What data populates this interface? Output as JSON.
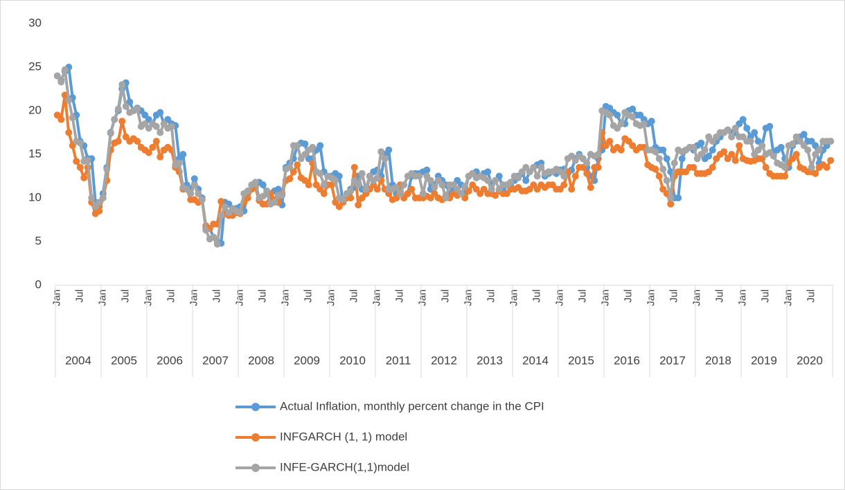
{
  "chart_data": {
    "type": "line",
    "categories": [
      "Jan",
      null,
      null,
      null,
      null,
      null,
      "Jul",
      null,
      null,
      null,
      null,
      null,
      "Jan",
      null,
      null,
      null,
      null,
      null,
      "Jul",
      null,
      null,
      null,
      null,
      null,
      "Jan",
      null,
      null,
      null,
      null,
      null,
      "Jul",
      null,
      null,
      null,
      null,
      null,
      "Jan",
      null,
      null,
      null,
      null,
      null,
      "Jul",
      null,
      null,
      null,
      null,
      null,
      "Jan",
      null,
      null,
      null,
      null,
      null,
      "Jul",
      null,
      null,
      null,
      null,
      null,
      "Jan",
      null,
      null,
      null,
      null,
      null,
      "Jul",
      null,
      null,
      null,
      null,
      null,
      "Jan",
      null,
      null,
      null,
      null,
      null,
      "Jul",
      null,
      null,
      null,
      null,
      null,
      "Jan",
      null,
      null,
      null,
      null,
      null,
      "Jul",
      null,
      null,
      null,
      null,
      null,
      "Jan",
      null,
      null,
      null,
      null,
      null,
      "Jul",
      null,
      null,
      null,
      null,
      null,
      "Jan",
      null,
      null,
      null,
      null,
      null,
      "Jul",
      null,
      null,
      null,
      null,
      null,
      "Jan",
      null,
      null,
      null,
      null,
      null,
      "Jul",
      null,
      null,
      null,
      null,
      null,
      "Jan",
      null,
      null,
      null,
      null,
      null,
      "Jul",
      null,
      null,
      null,
      null,
      null,
      "Jan",
      null,
      null,
      null,
      null,
      null,
      "Jul",
      null,
      null,
      null,
      null,
      null,
      "Jan",
      null,
      null,
      null,
      null,
      null,
      "Jul",
      null,
      null,
      null,
      null,
      null,
      "Jan",
      null,
      null,
      null,
      null,
      null,
      "Jul",
      null,
      null,
      null,
      null,
      null,
      "Jan",
      null,
      null,
      null,
      null,
      null,
      "Jul",
      null,
      null,
      null,
      null,
      null,
      "Jan",
      null,
      null,
      null,
      null,
      null,
      "Jul",
      null,
      null,
      null,
      null,
      null
    ],
    "years": [
      "2004",
      "2005",
      "2006",
      "2007",
      "2008",
      "2009",
      "2010",
      "2011",
      "2012",
      "2013",
      "2014",
      "2015",
      "2016",
      "2017",
      "2018",
      "2019",
      "2020"
    ],
    "ylim": [
      0,
      30
    ],
    "yticks": [
      0,
      5,
      10,
      15,
      20,
      25,
      30
    ],
    "grid": false,
    "series": [
      {
        "name": "Actual Inflation, monthly percent change in the CPI",
        "color": "#5b9bd5",
        "values": [
          24,
          23.5,
          24.5,
          25,
          21.5,
          19.5,
          16.5,
          16,
          14.5,
          14.5,
          9.5,
          9,
          10.5,
          13.5,
          17.5,
          19,
          20,
          22.5,
          23.2,
          21,
          20,
          20.3,
          20,
          19.5,
          19,
          18.5,
          19.5,
          19.8,
          18.5,
          19,
          18.5,
          18.3,
          14.5,
          15,
          11.5,
          11,
          12.2,
          11,
          10,
          6.5,
          6.5,
          5.5,
          5,
          4.8,
          9.5,
          9.3,
          8.5,
          8.8,
          9,
          8.5,
          10.5,
          11,
          11.5,
          11.8,
          11.5,
          10.5,
          10,
          10.8,
          11,
          9.2,
          13.5,
          14,
          14.5,
          16,
          16.3,
          16.2,
          14.5,
          14.5,
          15.5,
          16,
          13,
          12.5,
          12.5,
          12.8,
          12.5,
          9.5,
          10,
          11,
          11.2,
          12.5,
          11,
          10.5,
          12.5,
          13,
          13.2,
          12.5,
          15,
          15.5,
          11.5,
          10.5,
          10.8,
          10,
          10.5,
          12.5,
          12.8,
          12.8,
          13,
          13.2,
          11,
          11.5,
          12.5,
          12,
          11.5,
          10.5,
          11,
          12,
          11.5,
          10.8,
          12.5,
          12.8,
          13,
          12.5,
          12.8,
          13,
          11.5,
          12,
          12.5,
          11,
          11.5,
          11.5,
          12,
          12.5,
          12.8,
          12,
          13,
          13.5,
          13.8,
          14,
          12.5,
          12.8,
          13,
          12.8,
          13.2,
          13.3,
          12.8,
          13.2,
          14.5,
          15,
          14.5,
          13.5,
          12.5,
          12,
          14.5,
          15.5,
          20.5,
          20.3,
          19.8,
          19.5,
          18.5,
          18.5,
          20,
          20.2,
          19.5,
          19.5,
          19,
          18.5,
          18.8,
          15.8,
          15.5,
          15.5,
          14.5,
          13,
          10,
          10,
          14.5,
          15.5,
          15.8,
          15.5,
          16,
          16.3,
          14.5,
          14.8,
          15.5,
          16.5,
          17,
          17.5,
          17.8,
          17.5,
          17.5,
          18.5,
          19,
          18,
          17,
          17.5,
          16.5,
          16,
          18,
          18.2,
          15,
          15.5,
          15.8,
          14.5,
          13.5,
          16,
          16.5,
          17,
          17.3,
          16.5,
          16.5,
          16,
          14,
          15.5,
          16,
          16.5
        ]
      },
      {
        "name": "INFGARCH (1, 1) model",
        "color": "#ed7d31",
        "values": [
          19.5,
          19,
          21.8,
          17.5,
          16,
          14.2,
          13.5,
          12.3,
          13.5,
          9.5,
          8.2,
          8.5,
          10,
          12,
          15.5,
          16.3,
          16.5,
          18.8,
          17,
          16.5,
          16.8,
          16.5,
          15.8,
          15.5,
          15.2,
          15.8,
          16.5,
          14.7,
          15.5,
          15.8,
          15.5,
          13.5,
          13,
          11,
          11,
          9.8,
          9.8,
          9.5,
          9.8,
          6.8,
          6.5,
          7,
          7,
          9.6,
          8.2,
          8,
          8,
          8.3,
          8.2,
          9.5,
          10,
          11,
          11.2,
          9.7,
          9.3,
          9.3,
          10.5,
          9.8,
          9.5,
          10.5,
          12,
          12.2,
          13,
          13.8,
          12.3,
          12,
          11.5,
          14,
          11.5,
          11,
          10.5,
          11.5,
          11.5,
          9.5,
          9,
          9.5,
          10,
          10,
          13.5,
          9.2,
          10,
          10.5,
          11,
          11.5,
          11,
          12,
          11,
          10.5,
          9.8,
          10,
          11.5,
          10,
          10.5,
          11,
          10,
          10,
          10,
          10.2,
          10,
          10.5,
          10,
          9.8,
          10.3,
          10,
          10.5,
          10.3,
          10.5,
          10,
          10.8,
          11.5,
          11,
          10.5,
          11,
          10.5,
          10.5,
          10.3,
          10.8,
          10.5,
          10.5,
          11,
          11,
          11.2,
          10.8,
          10.8,
          11,
          11.5,
          11,
          11.5,
          11.2,
          11.5,
          11.5,
          11,
          11,
          11.5,
          13,
          11,
          12.5,
          13.5,
          13.5,
          12.8,
          11.2,
          13.5,
          13.5,
          17.5,
          16,
          16.5,
          15.5,
          15.8,
          15.5,
          16.8,
          16.5,
          16,
          15.5,
          15.8,
          15.8,
          13.8,
          13.5,
          13.3,
          12.5,
          11,
          10.5,
          9.3,
          12.5,
          13,
          13,
          13,
          13.5,
          13.5,
          12.8,
          12.8,
          12.8,
          13,
          13.5,
          14.5,
          15,
          15.3,
          14.5,
          15,
          14.3,
          16,
          14.5,
          14.3,
          14.2,
          14.3,
          14.5,
          14.5,
          13.5,
          12.8,
          12.5,
          12.5,
          12.5,
          12.5,
          14,
          14.5,
          15,
          13.5,
          13.3,
          13,
          13,
          12.8,
          13.5,
          13.8,
          13.5,
          14.3
        ]
      },
      {
        "name": "INFE-GARCH(1,1)model",
        "color": "#a5a5a5",
        "values": [
          24,
          23.3,
          24.7,
          21.2,
          19.2,
          16.5,
          16.3,
          14.2,
          14.3,
          10,
          9,
          9.5,
          10,
          13.3,
          17.4,
          19,
          20.2,
          23,
          20.5,
          19.8,
          20,
          20.2,
          18.2,
          18.5,
          18,
          18.5,
          18.2,
          17.5,
          18.5,
          18,
          18.2,
          13.8,
          14,
          11.2,
          11,
          10.5,
          11.5,
          10.5,
          9.8,
          6.3,
          5.3,
          5.5,
          4.7,
          8,
          9,
          8.3,
          8.8,
          8.5,
          8.3,
          10.5,
          10.8,
          11.5,
          11.8,
          10,
          10.2,
          10.8,
          9.3,
          9.5,
          10.3,
          10.3,
          13.3,
          13.5,
          16,
          16,
          14.5,
          15,
          15.5,
          15.8,
          13,
          12.8,
          11.5,
          12.5,
          12.3,
          12,
          10,
          9.8,
          10.5,
          10.8,
          12,
          11.5,
          12.8,
          11,
          12.5,
          12,
          12.3,
          15.3,
          14.5,
          11,
          11,
          11.2,
          10.5,
          11.5,
          12.5,
          12.8,
          12.5,
          12.5,
          10.5,
          12.5,
          12,
          11.2,
          12,
          11.5,
          10,
          11.5,
          11.5,
          11,
          10.5,
          11.3,
          12.5,
          12.8,
          12.3,
          12.5,
          12.3,
          12,
          11,
          12,
          11,
          11.5,
          11.5,
          11.8,
          12.5,
          12.3,
          13,
          13.5,
          13,
          13.5,
          12.5,
          13.5,
          12.8,
          13,
          13,
          13.3,
          13,
          12.5,
          14.5,
          14.8,
          14.3,
          14.8,
          14.5,
          14,
          15,
          14.8,
          15,
          20,
          19.8,
          19.5,
          18.3,
          18,
          18.5,
          19.8,
          19.5,
          19.3,
          18.5,
          18.3,
          18.5,
          15.5,
          15.5,
          15.3,
          14.5,
          13.3,
          12,
          10,
          14,
          15.5,
          15.3,
          15.5,
          15.8,
          15.8,
          14.5,
          15,
          15.5,
          17,
          16.5,
          17,
          17.5,
          17.5,
          17.8,
          17,
          18,
          17,
          17,
          16.5,
          16.5,
          15,
          15.5,
          16,
          15,
          15.2,
          14.8,
          14,
          13.8,
          13.5,
          16,
          16.2,
          17,
          16.5,
          16,
          15.5,
          13.5,
          15,
          15.5,
          16.5,
          16.5,
          16.5
        ]
      }
    ]
  }
}
